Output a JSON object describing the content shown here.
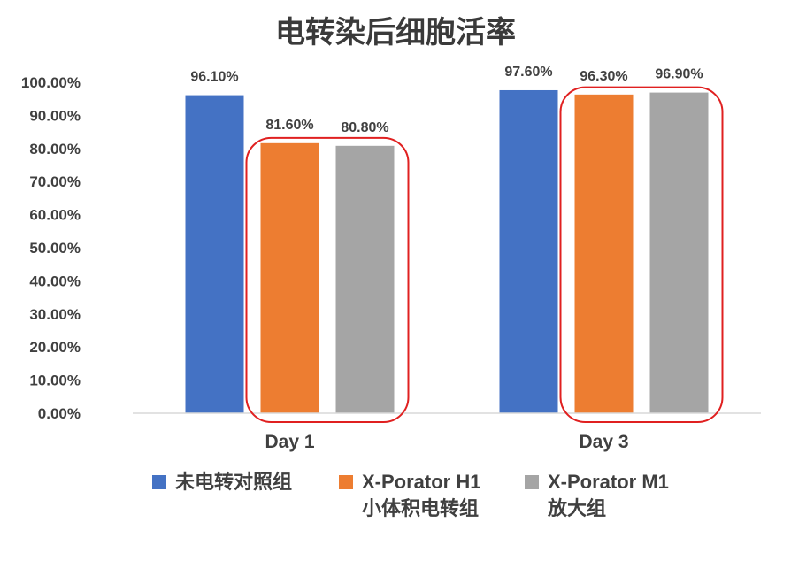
{
  "chart_data": {
    "type": "bar",
    "title": "电转染后细胞活率",
    "categories": [
      "Day 1",
      "Day 3"
    ],
    "series": [
      {
        "name": "未电转对照组",
        "color": "#4472C4",
        "values": [
          96.1,
          97.6
        ],
        "labels": [
          "96.10%",
          "97.60%"
        ]
      },
      {
        "name": "X-Porator H1\n小体积电转组",
        "color": "#ED7D31",
        "values": [
          81.6,
          96.3
        ],
        "labels": [
          "81.60%",
          "96.30%"
        ]
      },
      {
        "name": "X-Porator M1\n放大组",
        "color": "#A5A5A5",
        "values": [
          80.8,
          96.9
        ],
        "labels": [
          "80.80%",
          "96.90%"
        ]
      }
    ],
    "ylim": [
      0,
      100
    ],
    "yticks": [
      "0.00%",
      "10.00%",
      "20.00%",
      "30.00%",
      "40.00%",
      "50.00%",
      "60.00%",
      "70.00%",
      "80.00%",
      "90.00%",
      "100.00%"
    ],
    "grid": false,
    "legend_position": "bottom",
    "highlight_color": "#E02020"
  }
}
